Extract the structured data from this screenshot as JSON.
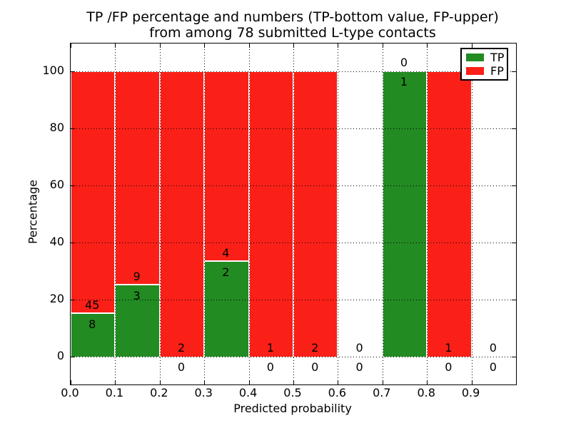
{
  "chart_data": {
    "type": "bar",
    "stacked": true,
    "title_lines": [
      "TP /FP percentage and numbers (TP-bottom value, FP-upper)",
      "from among 78 submitted L-type contacts"
    ],
    "xlabel": "Predicted probability",
    "ylabel": "Percentage",
    "total_submitted_contacts": 78,
    "bin_width": 0.1,
    "bin_starts": [
      0.0,
      0.1,
      0.2,
      0.3,
      0.4,
      0.5,
      0.6,
      0.7,
      0.8,
      0.9
    ],
    "series": [
      {
        "name": "TP",
        "color": "#228b22",
        "counts": [
          8,
          3,
          0,
          2,
          0,
          0,
          0,
          1,
          0,
          0
        ]
      },
      {
        "name": "FP",
        "color": "#fa2018",
        "counts": [
          45,
          9,
          2,
          4,
          1,
          2,
          0,
          0,
          1,
          0
        ]
      }
    ],
    "bar_total_height_percent": 100,
    "tp_percent_of_bar": [
      15.1,
      25.0,
      0.0,
      33.3,
      0.0,
      0.0,
      null,
      100.0,
      0.0,
      null
    ],
    "xticks": [
      "0.0",
      "0.1",
      "0.2",
      "0.3",
      "0.4",
      "0.5",
      "0.6",
      "0.7",
      "0.8",
      "0.9"
    ],
    "yticks": [
      "0",
      "20",
      "40",
      "60",
      "80",
      "100"
    ],
    "ytick_values": [
      0,
      20,
      40,
      60,
      80,
      100
    ],
    "xlim": [
      0.0,
      1.0
    ],
    "ylim": [
      -9.75,
      109.75
    ],
    "grid": "dotted-both-axes-above-bars",
    "axis_color": "#000000",
    "background_color": "#ffffff",
    "legend": {
      "position": "upper right",
      "entries": [
        {
          "label": "TP",
          "color": "#228b22"
        },
        {
          "label": "FP",
          "color": "#fa2018"
        }
      ]
    }
  }
}
